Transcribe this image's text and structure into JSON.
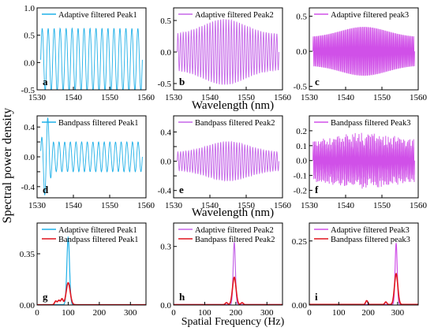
{
  "figure": {
    "shared_ylabel": "Spectral power density",
    "row_xlabels": [
      "Wavelength (nm)",
      "Wavelength (nm)",
      "Spatial Frequency (Hz)"
    ]
  },
  "chart_data": [
    {
      "panel": "a",
      "type": "line",
      "series": [
        {
          "name": "Adaptive filtered Peak1",
          "color": "#1fb0e8"
        }
      ],
      "x": {
        "range": [
          1530,
          1560
        ],
        "ticks": [
          1530,
          1540,
          1550,
          1560
        ]
      },
      "y": {
        "range": [
          -0.5,
          1.0
        ],
        "ticks": [
          -0.5,
          0.0,
          0.5,
          1.0
        ],
        "tick_labels": [
          "-0.5",
          "0.0",
          "0.5",
          "1.0"
        ]
      },
      "signal": {
        "x_start": 1531,
        "x_end": 1559,
        "center": 1545,
        "cycles": 17,
        "envelope_center": 0.58,
        "envelope_edge": 0.5,
        "envelope_width": 60,
        "offset": 0.05,
        "carrier": "sine",
        "samples": 300
      }
    },
    {
      "panel": "b",
      "type": "line",
      "series": [
        {
          "name": "Adaptive filtered Peak2",
          "color": "#c566e8"
        }
      ],
      "x": {
        "range": [
          1530,
          1560
        ],
        "ticks": [
          1530,
          1540,
          1550,
          1560
        ]
      },
      "y": {
        "range": [
          -0.6,
          0.7
        ],
        "ticks": [
          -0.5,
          0.0,
          0.5
        ],
        "tick_labels": [
          "-0.5",
          "0.0",
          "0.5"
        ]
      },
      "signal": {
        "x_start": 1531,
        "x_end": 1559,
        "center": 1544,
        "cycles": 38,
        "envelope_center": 0.52,
        "envelope_edge": 0.28,
        "envelope_width": 8,
        "offset": 0.0,
        "carrier": "sine",
        "samples": 900
      }
    },
    {
      "panel": "c",
      "type": "line",
      "series": [
        {
          "name": "Adaptive filtered peak3",
          "color": "#d050e8"
        }
      ],
      "x": {
        "range": [
          1530,
          1560
        ],
        "ticks": [
          1530,
          1540,
          1550,
          1560
        ]
      },
      "y": {
        "range": [
          -0.55,
          0.62
        ],
        "ticks": [
          -0.5,
          0.0,
          0.5
        ],
        "tick_labels": [
          "-0.5",
          "0.0",
          "0.5"
        ]
      },
      "signal": {
        "x_start": 1531,
        "x_end": 1559,
        "center": 1545,
        "cycles": 80,
        "envelope_center": 0.35,
        "envelope_edge": 0.2,
        "envelope_width": 9,
        "offset": 0.0,
        "carrier": "sine",
        "samples": 1400
      }
    },
    {
      "panel": "d",
      "type": "line",
      "series": [
        {
          "name": "Bandpass filtered Peak1",
          "color": "#1fb0e8"
        }
      ],
      "x": {
        "range": [
          1530,
          1560
        ],
        "ticks": [
          1530,
          1540,
          1550,
          1560
        ]
      },
      "y": {
        "range": [
          -0.55,
          0.55
        ],
        "ticks": [
          -0.4,
          -0.2,
          0.0,
          0.2,
          0.4
        ],
        "tick_labels": [
          "-0.4",
          "",
          "0.0",
          "",
          "0.4"
        ]
      },
      "signal": {
        "x_start": 1531,
        "x_end": 1559,
        "center": 1545,
        "cycles": 18,
        "envelope_center": 0.2,
        "envelope_edge": 0.2,
        "envelope_width": 60,
        "offset": 0.0,
        "carrier": "sine",
        "samples": 400,
        "transient": {
          "at": 1532.5,
          "amplitude": 0.38,
          "width": 1.2
        }
      }
    },
    {
      "panel": "e",
      "type": "line",
      "series": [
        {
          "name": "Bandpass filtered Peak2",
          "color": "#c566e8"
        }
      ],
      "x": {
        "range": [
          1530,
          1560
        ],
        "ticks": [
          1530,
          1540,
          1550,
          1560
        ]
      },
      "y": {
        "range": [
          -0.5,
          0.62
        ],
        "ticks": [
          -0.4,
          -0.2,
          0.0,
          0.2,
          0.4
        ],
        "tick_labels": [
          "-0.4",
          "",
          "0.0",
          "",
          "0.4"
        ]
      },
      "signal": {
        "x_start": 1531,
        "x_end": 1559,
        "center": 1545,
        "cycles": 38,
        "envelope_center": 0.27,
        "envelope_edge": 0.12,
        "envelope_width": 8,
        "offset": 0.0,
        "carrier": "sine",
        "samples": 900
      }
    },
    {
      "panel": "f",
      "type": "line",
      "series": [
        {
          "name": "Bandpass filtered Peak3",
          "color": "#d050e8"
        }
      ],
      "x": {
        "range": [
          1530,
          1560
        ],
        "ticks": [
          1530,
          1540,
          1550,
          1560
        ]
      },
      "y": {
        "range": [
          -0.25,
          0.3
        ],
        "ticks": [
          -0.2,
          -0.1,
          0.0,
          0.1,
          0.2
        ],
        "tick_labels": [
          "-0.2",
          "-0.1",
          "0.0",
          "0.1",
          "0.2"
        ]
      },
      "signal": {
        "x_start": 1531,
        "x_end": 1559,
        "center": 1545,
        "cycles": 80,
        "envelope_center": 0.14,
        "envelope_edge": 0.1,
        "envelope_width": 12,
        "offset": 0.0,
        "carrier": "sine",
        "samples": 1400,
        "noise": 0.35
      }
    },
    {
      "panel": "g",
      "type": "line",
      "series": [
        {
          "name": "Adaptive filtered Peak1",
          "color": "#1fb0e8",
          "peak_x": 100,
          "peak_y": 0.46,
          "width": 6
        },
        {
          "name": "Bandpass filtered Peak1",
          "color": "#e0141e",
          "peak_x": 100,
          "peak_y": 0.15,
          "width": 9,
          "bumps": [
            [
              60,
              0.025
            ],
            [
              70,
              0.03
            ],
            [
              80,
              0.04
            ]
          ]
        }
      ],
      "x": {
        "range": [
          0,
          350
        ],
        "ticks": [
          0,
          100,
          200,
          300
        ]
      },
      "y": {
        "range": [
          0,
          0.56
        ],
        "ticks": [
          0.0,
          0.35
        ],
        "tick_labels": [
          "0.00",
          "0.35"
        ]
      }
    },
    {
      "panel": "h",
      "type": "line",
      "series": [
        {
          "name": "Adaptive filtered Peak2",
          "color": "#c566e8",
          "peak_x": 195,
          "peak_y": 0.32,
          "width": 5
        },
        {
          "name": "Bandpass filtered Peak2",
          "color": "#e0141e",
          "peak_x": 195,
          "peak_y": 0.14,
          "width": 8,
          "bumps": [
            [
              170,
              0.01
            ],
            [
              220,
              0.01
            ]
          ]
        }
      ],
      "x": {
        "range": [
          0,
          350
        ],
        "ticks": [
          0,
          100,
          200,
          300
        ]
      },
      "y": {
        "range": [
          0,
          0.42
        ],
        "ticks": [
          0.0,
          0.3
        ],
        "tick_labels": [
          "0.0",
          "0.3"
        ]
      }
    },
    {
      "panel": "i",
      "type": "line",
      "series": [
        {
          "name": "Adaptive filtered Peak3",
          "color": "#d050e8",
          "peak_x": 295,
          "peak_y": 0.24,
          "width": 5
        },
        {
          "name": "Bandpass filtered peak3",
          "color": "#e0141e",
          "peak_x": 295,
          "peak_y": 0.12,
          "width": 8,
          "bumps": [
            [
              195,
              0.015
            ],
            [
              260,
              0.01
            ]
          ]
        }
      ],
      "x": {
        "range": [
          0,
          370
        ],
        "ticks": [
          0,
          100,
          200,
          300
        ]
      },
      "y": {
        "range": [
          0,
          0.32
        ],
        "ticks": [
          0.0,
          0.25
        ],
        "tick_labels": [
          "0.00",
          "0.25"
        ]
      }
    }
  ]
}
